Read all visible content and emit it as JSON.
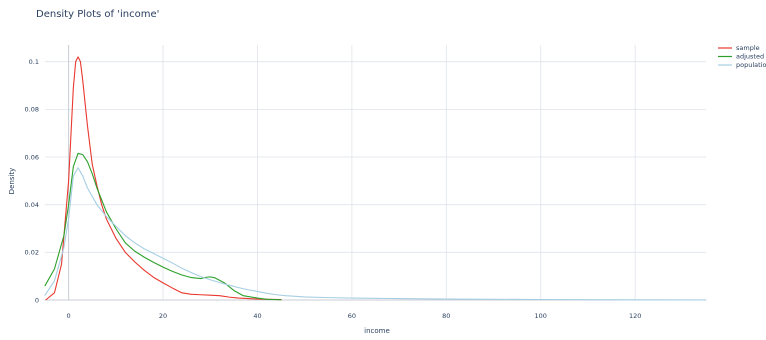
{
  "chart_data": {
    "type": "line",
    "title": "Density Plots of 'income'",
    "xlabel": "income",
    "ylabel": "Density",
    "xlim": [
      -5,
      135
    ],
    "ylim": [
      0,
      0.107
    ],
    "x_ticks": [
      0,
      20,
      40,
      60,
      80,
      100,
      120
    ],
    "y_ticks": [
      0,
      0.02,
      0.04,
      0.06,
      0.08,
      0.1
    ],
    "x_tick_labels": [
      "0",
      "20",
      "40",
      "60",
      "80",
      "100",
      "120"
    ],
    "y_tick_labels": [
      "0",
      "0.02",
      "0.04",
      "0.06",
      "0.08",
      "0.1"
    ],
    "grid": true,
    "legend_position": "top-right",
    "series": [
      {
        "name": "sample",
        "color": "#e8392f",
        "points": [
          [
            -4.8,
            0.0001
          ],
          [
            -3,
            0.003
          ],
          [
            -1.5,
            0.015
          ],
          [
            0,
            0.05
          ],
          [
            1,
            0.089
          ],
          [
            1.5,
            0.1
          ],
          [
            2,
            0.102
          ],
          [
            2.5,
            0.1
          ],
          [
            3,
            0.092
          ],
          [
            4,
            0.073
          ],
          [
            5,
            0.057
          ],
          [
            6,
            0.048
          ],
          [
            7,
            0.04
          ],
          [
            8,
            0.034
          ],
          [
            10,
            0.026
          ],
          [
            12,
            0.02
          ],
          [
            14,
            0.016
          ],
          [
            16,
            0.0125
          ],
          [
            18,
            0.0095
          ],
          [
            20,
            0.0072
          ],
          [
            22,
            0.005
          ],
          [
            24,
            0.003
          ],
          [
            26,
            0.0024
          ],
          [
            28,
            0.0022
          ],
          [
            30,
            0.002
          ],
          [
            32,
            0.0018
          ],
          [
            34,
            0.0012
          ],
          [
            36,
            0.0008
          ],
          [
            38,
            0.0006
          ],
          [
            40,
            0.0004
          ],
          [
            42,
            0.0003
          ],
          [
            45,
            0.0002
          ]
        ]
      },
      {
        "name": "adjusted",
        "color": "#2ca02c",
        "points": [
          [
            -5,
            0.006
          ],
          [
            -3,
            0.013
          ],
          [
            -1,
            0.027
          ],
          [
            0,
            0.04
          ],
          [
            1,
            0.056
          ],
          [
            2,
            0.0615
          ],
          [
            3,
            0.061
          ],
          [
            4,
            0.058
          ],
          [
            5,
            0.053
          ],
          [
            6,
            0.047
          ],
          [
            8,
            0.037
          ],
          [
            10,
            0.03
          ],
          [
            12,
            0.024
          ],
          [
            14,
            0.0205
          ],
          [
            16,
            0.018
          ],
          [
            18,
            0.0158
          ],
          [
            20,
            0.0138
          ],
          [
            22,
            0.012
          ],
          [
            24,
            0.0105
          ],
          [
            26,
            0.0094
          ],
          [
            28,
            0.009
          ],
          [
            29,
            0.0095
          ],
          [
            30,
            0.0097
          ],
          [
            31,
            0.0093
          ],
          [
            33,
            0.0072
          ],
          [
            35,
            0.004
          ],
          [
            37,
            0.0018
          ],
          [
            40,
            0.0008
          ],
          [
            42,
            0.0003
          ],
          [
            45,
            0.0001
          ]
        ]
      },
      {
        "name": "population",
        "color": "#a6cee3",
        "points": [
          [
            -5,
            0.002
          ],
          [
            -3,
            0.008
          ],
          [
            -1,
            0.022
          ],
          [
            0,
            0.034
          ],
          [
            1,
            0.052
          ],
          [
            2,
            0.0555
          ],
          [
            3,
            0.052
          ],
          [
            4,
            0.047
          ],
          [
            6,
            0.04
          ],
          [
            8,
            0.035
          ],
          [
            10,
            0.031
          ],
          [
            12,
            0.027
          ],
          [
            14,
            0.024
          ],
          [
            16,
            0.0215
          ],
          [
            18,
            0.0195
          ],
          [
            20,
            0.0175
          ],
          [
            22,
            0.0155
          ],
          [
            24,
            0.0133
          ],
          [
            26,
            0.0115
          ],
          [
            28,
            0.0098
          ],
          [
            30,
            0.0085
          ],
          [
            32,
            0.0073
          ],
          [
            34,
            0.0062
          ],
          [
            36,
            0.0052
          ],
          [
            38,
            0.0043
          ],
          [
            40,
            0.0036
          ],
          [
            42,
            0.0028
          ],
          [
            44,
            0.0022
          ],
          [
            46,
            0.0018
          ],
          [
            50,
            0.0013
          ],
          [
            55,
            0.001
          ],
          [
            60,
            0.0008
          ],
          [
            70,
            0.0006
          ],
          [
            80,
            0.0004
          ],
          [
            90,
            0.0003
          ],
          [
            100,
            0.0002
          ],
          [
            110,
            0.00015
          ],
          [
            120,
            0.0001
          ],
          [
            135,
            5e-05
          ]
        ]
      }
    ]
  }
}
